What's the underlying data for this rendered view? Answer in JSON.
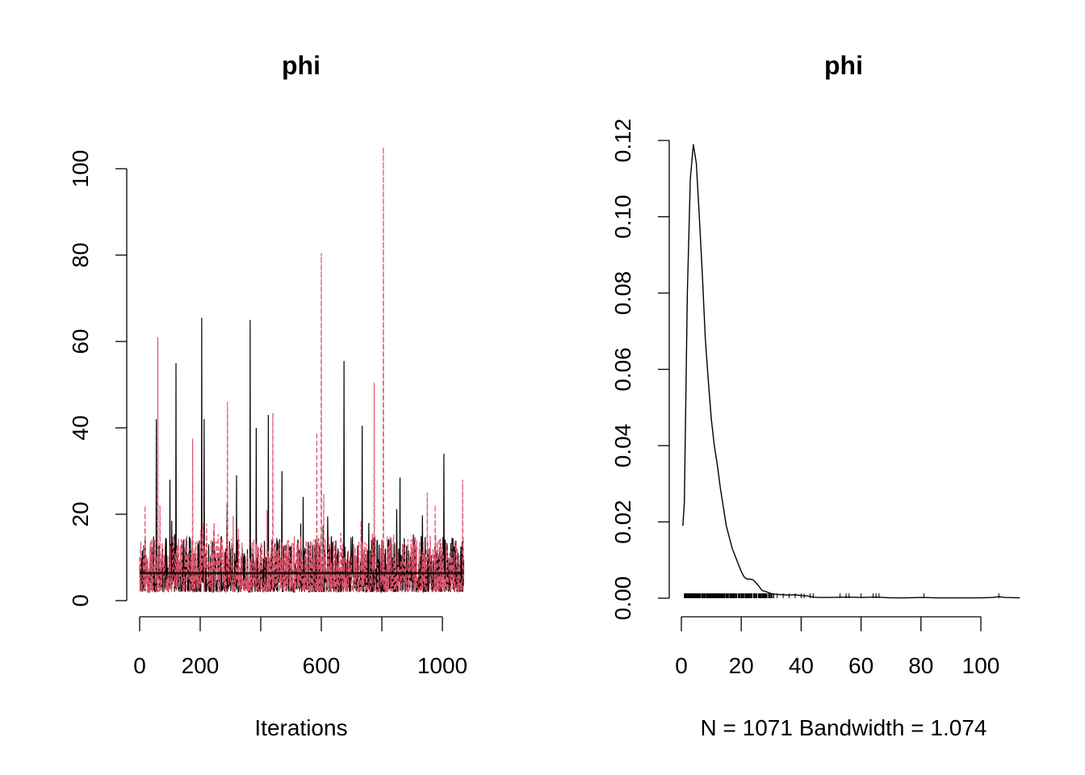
{
  "colors": {
    "chain1": "#000000",
    "chain2": "#DF536B",
    "axis": "#000000",
    "background": "#FFFFFF"
  },
  "chart_data": [
    {
      "type": "line",
      "title": "phi",
      "xlabel": "Iterations",
      "ylabel": "",
      "xlim": [
        0,
        1071
      ],
      "ylim": [
        0,
        105
      ],
      "xticks": [
        0,
        200,
        600,
        1000
      ],
      "yticks": [
        0,
        20,
        40,
        60,
        80,
        100
      ],
      "series_style": [
        {
          "color": "#000000",
          "dash": "solid",
          "smooth": 6.5
        },
        {
          "color": "#DF536B",
          "dash": "dashed",
          "smooth": 6.2
        }
      ],
      "spikes": [
        {
          "series": 0,
          "x": 55,
          "y": 42
        },
        {
          "series": 0,
          "x": 100,
          "y": 28
        },
        {
          "series": 0,
          "x": 120,
          "y": 55
        },
        {
          "series": 0,
          "x": 205,
          "y": 65.5
        },
        {
          "series": 0,
          "x": 213,
          "y": 42
        },
        {
          "series": 0,
          "x": 320,
          "y": 29
        },
        {
          "series": 0,
          "x": 365,
          "y": 65
        },
        {
          "series": 0,
          "x": 385,
          "y": 40
        },
        {
          "series": 0,
          "x": 425,
          "y": 43
        },
        {
          "series": 0,
          "x": 470,
          "y": 30
        },
        {
          "series": 0,
          "x": 540,
          "y": 24
        },
        {
          "series": 0,
          "x": 675,
          "y": 55.5
        },
        {
          "series": 0,
          "x": 735,
          "y": 40.5
        },
        {
          "series": 0,
          "x": 860,
          "y": 28.5
        },
        {
          "series": 0,
          "x": 1005,
          "y": 34
        },
        {
          "series": 1,
          "x": 18,
          "y": 22
        },
        {
          "series": 1,
          "x": 60,
          "y": 61
        },
        {
          "series": 1,
          "x": 175,
          "y": 37.5
        },
        {
          "series": 1,
          "x": 290,
          "y": 46
        },
        {
          "series": 1,
          "x": 440,
          "y": 43.5
        },
        {
          "series": 1,
          "x": 585,
          "y": 39
        },
        {
          "series": 1,
          "x": 600,
          "y": 80.5
        },
        {
          "series": 1,
          "x": 775,
          "y": 50.5
        },
        {
          "series": 1,
          "x": 805,
          "y": 105
        },
        {
          "series": 1,
          "x": 950,
          "y": 25
        },
        {
          "series": 1,
          "x": 1067,
          "y": 28
        }
      ]
    },
    {
      "type": "line",
      "title": "phi",
      "xlabel": "N = 1071   Bandwidth = 1.074",
      "ylabel": "",
      "xlim": [
        0,
        113
      ],
      "ylim": [
        0,
        0.12
      ],
      "xticks": [
        0,
        20,
        40,
        60,
        80,
        100
      ],
      "yticks": [
        "0.00",
        "0.02",
        "0.04",
        "0.06",
        "0.08",
        "0.10",
        "0.12"
      ],
      "density": {
        "x": [
          0.5,
          1,
          2,
          3,
          4,
          5,
          6,
          7,
          8,
          9,
          10,
          11,
          12,
          13,
          14,
          15,
          16,
          17,
          18,
          19,
          20,
          21,
          22,
          23,
          24,
          25,
          26,
          27,
          28,
          29,
          30,
          32,
          34,
          36,
          38,
          40,
          42,
          44,
          46,
          48,
          50,
          55,
          60,
          65,
          70,
          75,
          80,
          85,
          90,
          95,
          100,
          104,
          106,
          108,
          113
        ],
        "y": [
          0.019,
          0.025,
          0.08,
          0.11,
          0.119,
          0.114,
          0.1,
          0.085,
          0.068,
          0.057,
          0.047,
          0.04,
          0.035,
          0.029,
          0.024,
          0.019,
          0.016,
          0.013,
          0.011,
          0.009,
          0.007,
          0.0055,
          0.005,
          0.005,
          0.0048,
          0.004,
          0.003,
          0.002,
          0.0018,
          0.0015,
          0.0012,
          0.001,
          0.0009,
          0.0008,
          0.0009,
          0.0007,
          0.0006,
          0.0003,
          0.0002,
          0.0002,
          0.0002,
          0.0003,
          0.0002,
          0.0003,
          0.0001,
          0.0001,
          0.0002,
          0.0001,
          0.0001,
          0.0001,
          0.0001,
          0.0002,
          0.0004,
          0.0002,
          0.0001
        ]
      }
    }
  ]
}
